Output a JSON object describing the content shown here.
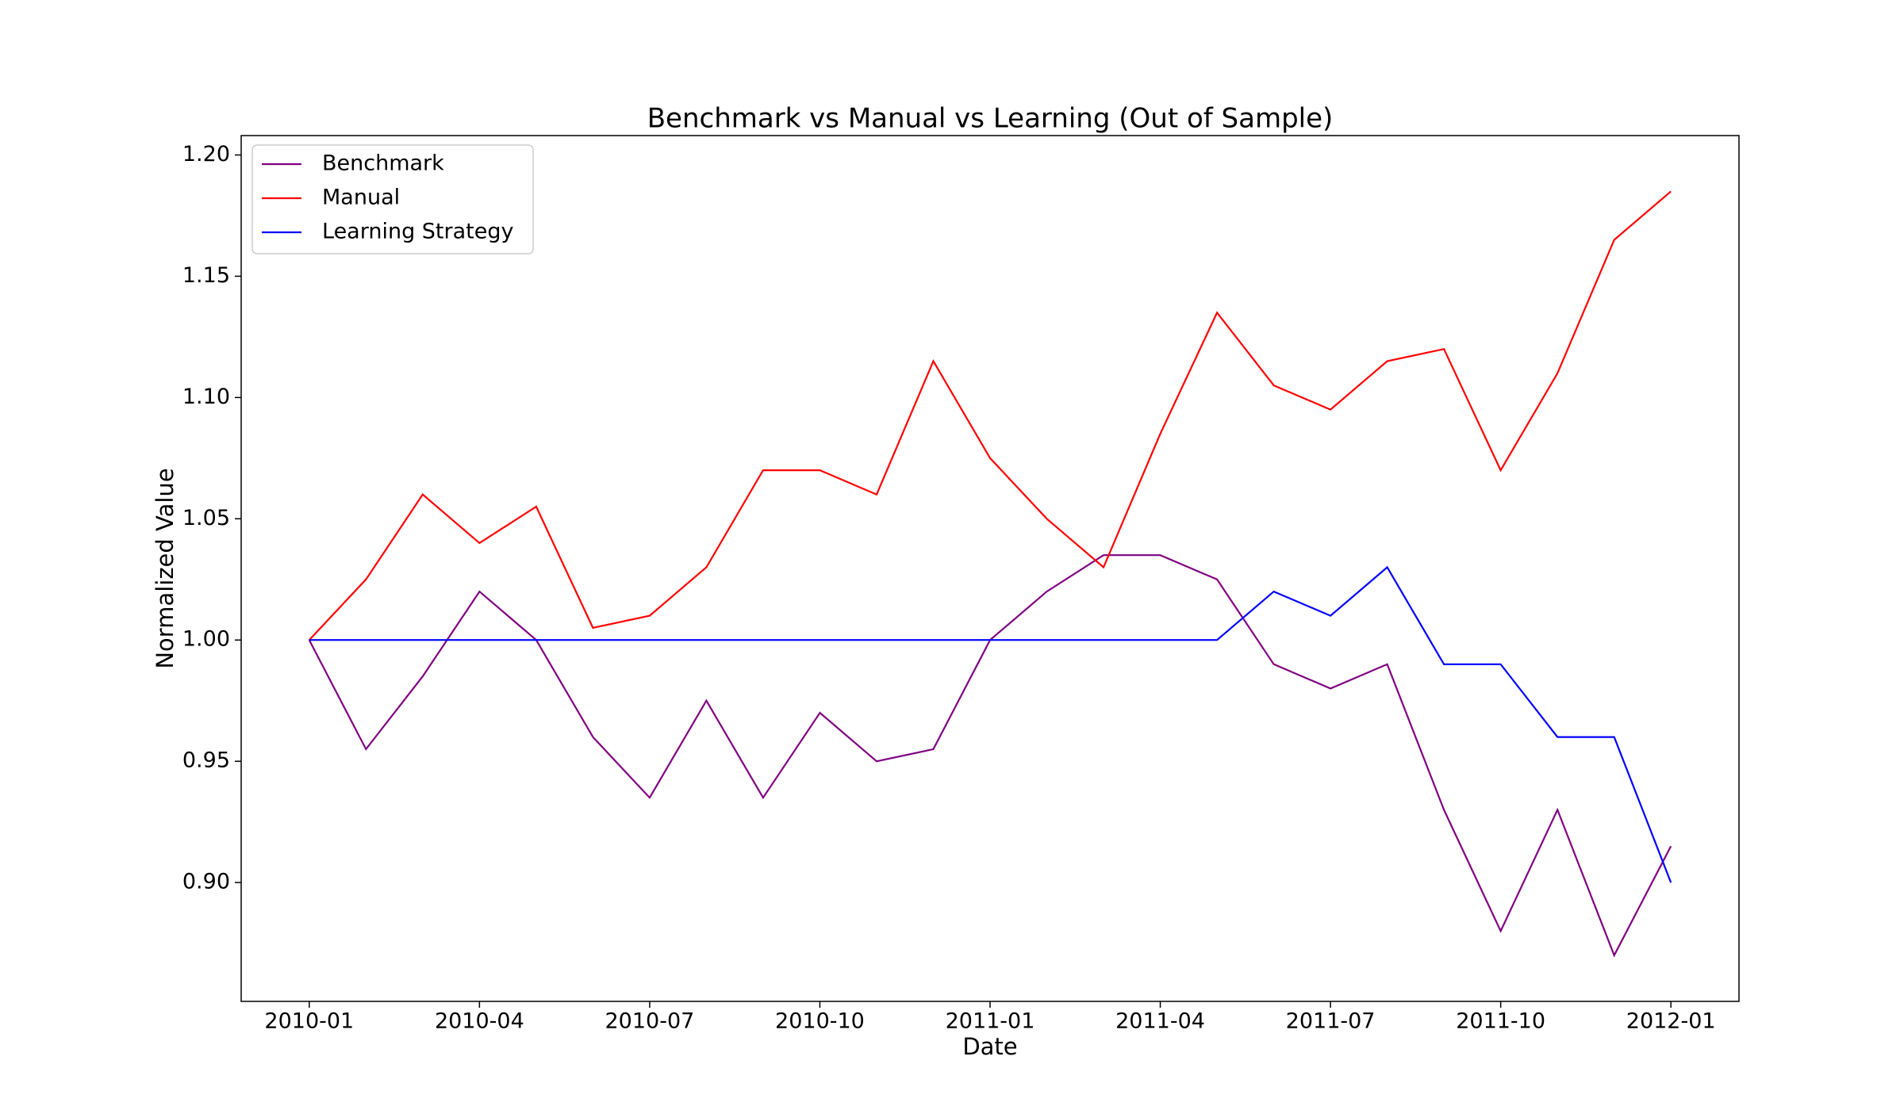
{
  "chart_data": {
    "type": "line",
    "title": "Benchmark vs Manual vs Learning (Out of Sample)",
    "x_label": "Date",
    "y_label": "Normalized Value",
    "x": [
      "2010-01",
      "2010-02",
      "2010-03",
      "2010-04",
      "2010-05",
      "2010-06",
      "2010-07",
      "2010-08",
      "2010-09",
      "2010-10",
      "2010-11",
      "2010-12",
      "2011-01",
      "2011-02",
      "2011-03",
      "2011-04",
      "2011-05",
      "2011-06",
      "2011-07",
      "2011-08",
      "2011-09",
      "2011-10",
      "2011-11",
      "2011-12",
      "2012-01"
    ],
    "series": [
      {
        "name": "Benchmark",
        "color": "#800080",
        "values": [
          1.0,
          0.955,
          0.985,
          1.02,
          1.0,
          0.96,
          0.935,
          0.975,
          0.935,
          0.97,
          0.95,
          0.955,
          1.0,
          1.02,
          1.035,
          1.035,
          1.025,
          0.99,
          0.98,
          0.99,
          0.93,
          0.88,
          0.93,
          0.87,
          0.915
        ]
      },
      {
        "name": "Manual",
        "color": "#ff0000",
        "values": [
          1.0,
          1.025,
          1.06,
          1.04,
          1.055,
          1.005,
          1.01,
          1.03,
          1.07,
          1.07,
          1.06,
          1.115,
          1.075,
          1.05,
          1.03,
          1.085,
          1.135,
          1.105,
          1.095,
          1.115,
          1.12,
          1.07,
          1.11,
          1.165,
          1.185
        ]
      },
      {
        "name": "Learning Strategy",
        "color": "#0000ff",
        "values": [
          1.0,
          1.0,
          1.0,
          1.0,
          1.0,
          1.0,
          1.0,
          1.0,
          1.0,
          1.0,
          1.0,
          1.0,
          1.0,
          1.0,
          1.0,
          1.0,
          1.0,
          1.02,
          1.01,
          1.03,
          0.99,
          0.99,
          0.96,
          0.96,
          0.9
        ]
      }
    ],
    "xticks": [
      "2010-01",
      "2010-04",
      "2010-07",
      "2010-10",
      "2011-01",
      "2011-04",
      "2011-07",
      "2011-10",
      "2012-01"
    ],
    "ylim": [
      0.851,
      1.208
    ],
    "yticks": [
      {
        "value": 0.9,
        "label": "0.90"
      },
      {
        "value": 0.95,
        "label": "0.95"
      },
      {
        "value": 1.0,
        "label": "1.00"
      },
      {
        "value": 1.05,
        "label": "1.05"
      },
      {
        "value": 1.1,
        "label": "1.10"
      },
      {
        "value": 1.15,
        "label": "1.15"
      },
      {
        "value": 1.2,
        "label": "1.20"
      }
    ],
    "legend": "upper left",
    "grid": false
  }
}
